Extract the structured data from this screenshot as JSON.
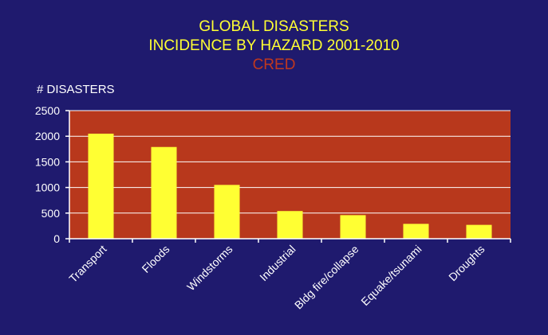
{
  "header": {
    "title_line1": "GLOBAL DISASTERS",
    "title_line2": "INCIDENCE BY HAZARD 2001-2010",
    "source": "CRED"
  },
  "chart_data": {
    "type": "bar",
    "title": "GLOBAL DISASTERS INCIDENCE BY HAZARD 2001-2010",
    "subtitle": "CRED",
    "ylabel": "# DISASTERS",
    "xlabel": "",
    "categories": [
      "Transport",
      "Floods",
      "Windstorms",
      "Industrial",
      "Bldg fire/collapse",
      "Equake/tsunami",
      "Droughts"
    ],
    "values": [
      2050,
      1790,
      1050,
      540,
      460,
      290,
      270
    ],
    "ylim": [
      0,
      2500
    ],
    "yticks": [
      0,
      500,
      1000,
      1500,
      2000,
      2500
    ],
    "grid": true,
    "colors": {
      "background": "#1f1a6e",
      "plot_area": "#b8381c",
      "bar": "#ffff33",
      "title": "#ffff33",
      "source": "#c0381e",
      "text": "#ffffff"
    }
  }
}
